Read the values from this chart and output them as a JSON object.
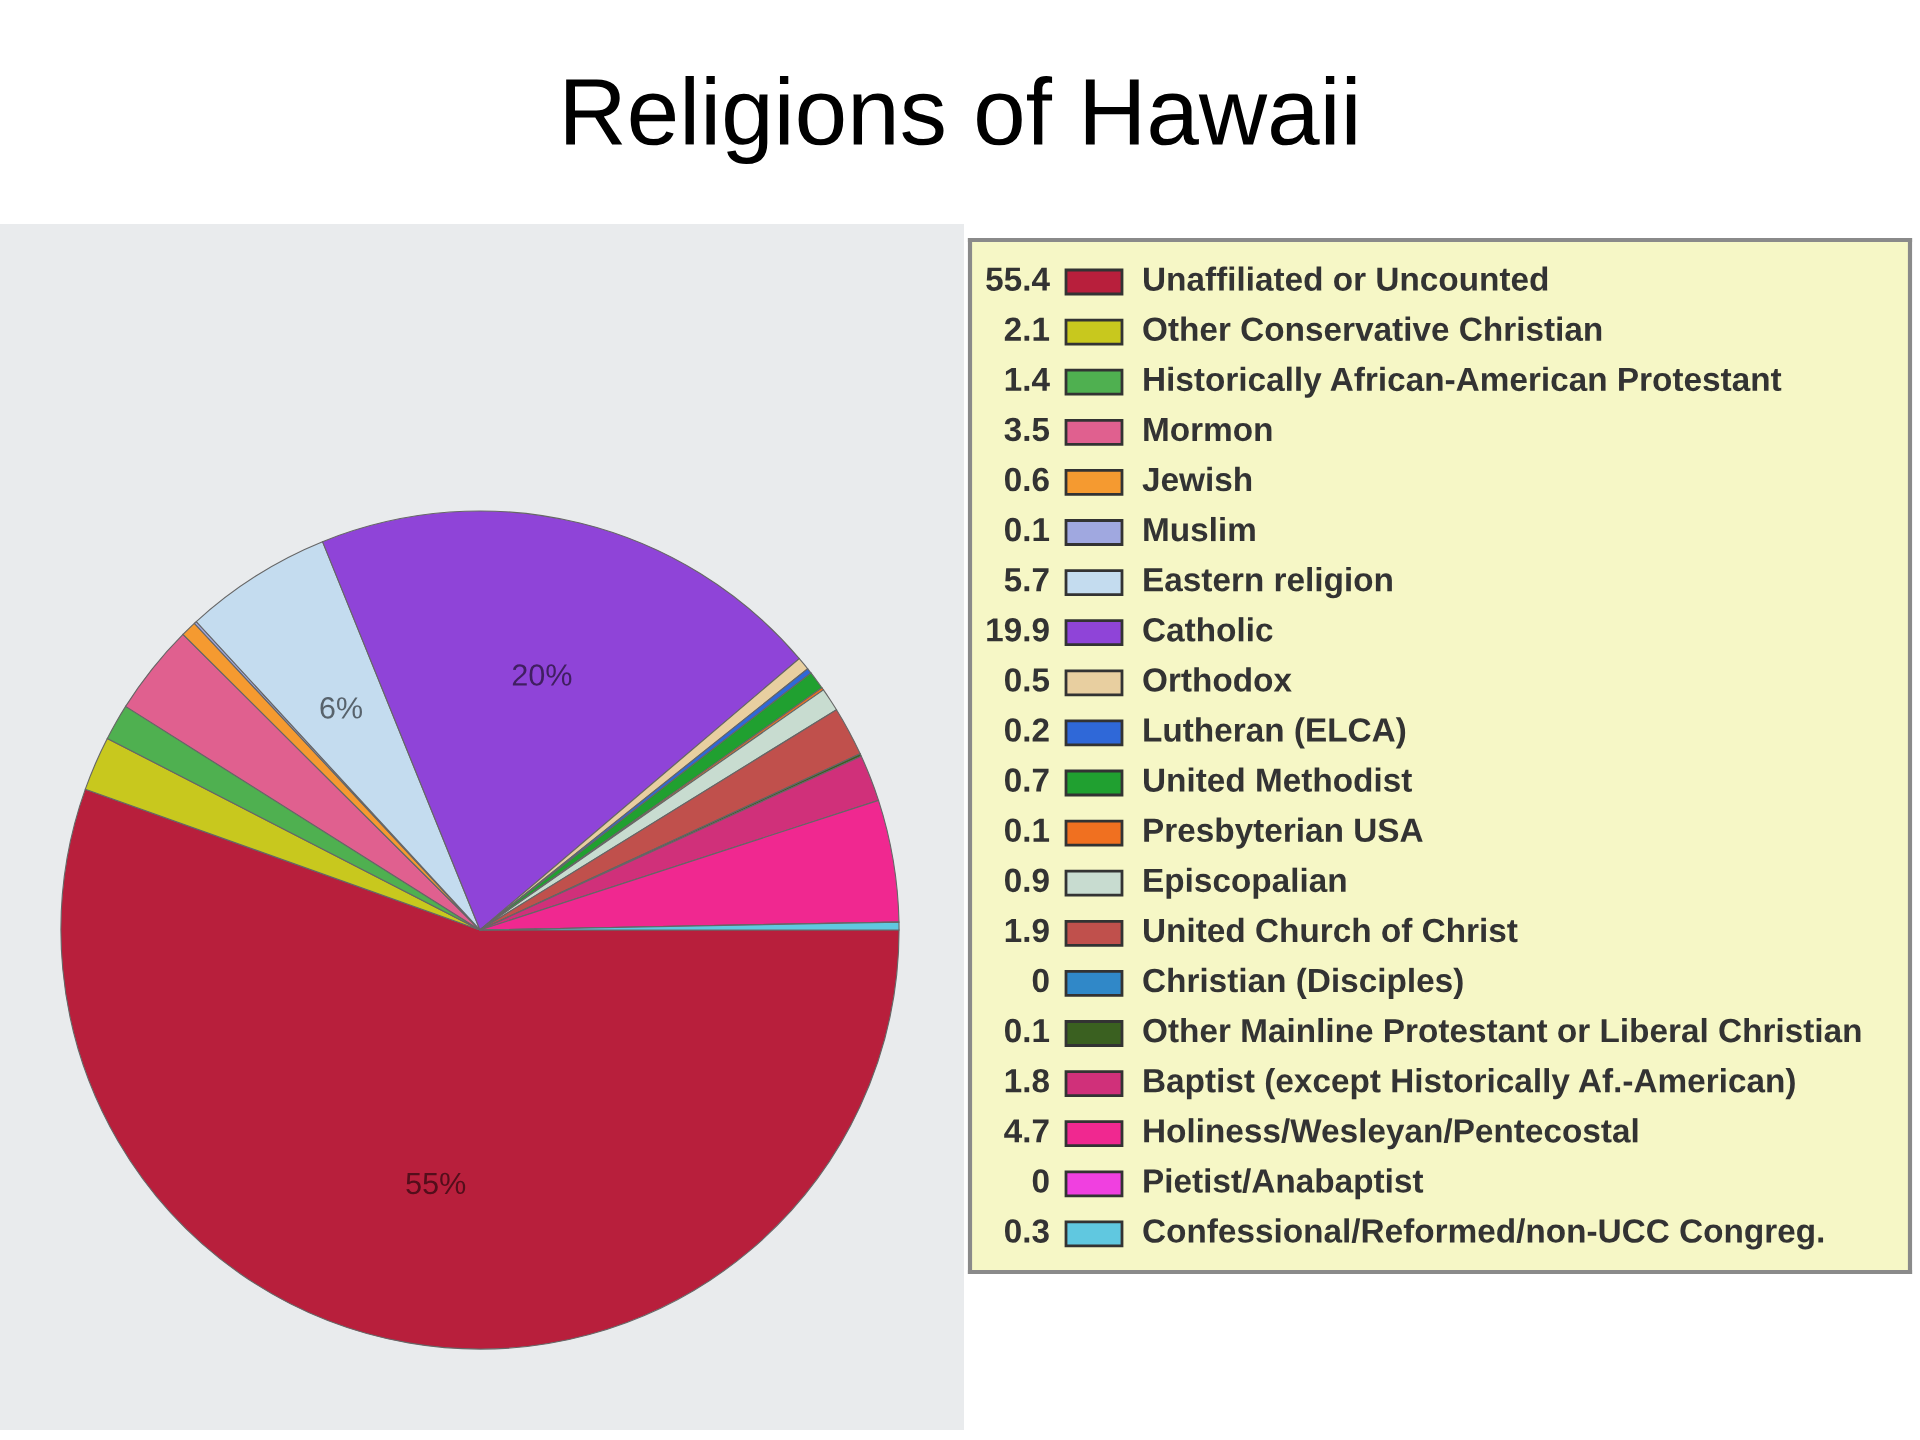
{
  "chart_data": {
    "type": "pie",
    "title": "Religions of Hawaii",
    "categories": [
      "Unaffiliated or Uncounted",
      "Other Conservative Christian",
      "Historically African-American Protestant",
      "Mormon",
      "Jewish",
      "Muslim",
      "Eastern religion",
      "Catholic",
      "Orthodox",
      "Lutheran (ELCA)",
      "United Methodist",
      "Presbyterian USA",
      "Episcopalian",
      "United Church of Christ",
      "Christian (Disciples)",
      "Other Mainline Protestant or Liberal Christian",
      "Baptist (except Historically Af.-American)",
      "Holiness/Wesleyan/Pentecostal",
      "Pietist/Anabaptist",
      "Confessional/Reformed/non-UCC Congreg."
    ],
    "values": [
      55.4,
      2.1,
      1.4,
      3.5,
      0.6,
      0.1,
      5.7,
      19.9,
      0.5,
      0.2,
      0.7,
      0.1,
      0.9,
      1.9,
      0,
      0.1,
      1.8,
      4.7,
      0,
      0.3
    ],
    "value_labels": [
      "55.4",
      "2.1",
      "1.4",
      "3.5",
      "0.6",
      "0.1",
      "5.7",
      "19.9",
      "0.5",
      "0.2",
      "0.7",
      "0.1",
      "0.9",
      "1.9",
      "0",
      "0.1",
      "1.8",
      "4.7",
      "0",
      "0.3"
    ],
    "colors": [
      "#b81f3c",
      "#c8c81e",
      "#4fb050",
      "#e0608f",
      "#f59a30",
      "#a0a8e0",
      "#c4dcef",
      "#8f44d8",
      "#e8cfa0",
      "#2f68d8",
      "#20a030",
      "#f07020",
      "#c8dcd0",
      "#c0504c",
      "#3088c8",
      "#3a6020",
      "#d0307a",
      "#f02890",
      "#f040e0",
      "#60c8e0"
    ],
    "annotations": [
      {
        "text": "55%",
        "x": "Unaffiliated or Uncounted"
      },
      {
        "text": "6%",
        "x": "Eastern religion"
      },
      {
        "text": "20%",
        "x": "Catholic"
      }
    ],
    "legend": "right"
  }
}
